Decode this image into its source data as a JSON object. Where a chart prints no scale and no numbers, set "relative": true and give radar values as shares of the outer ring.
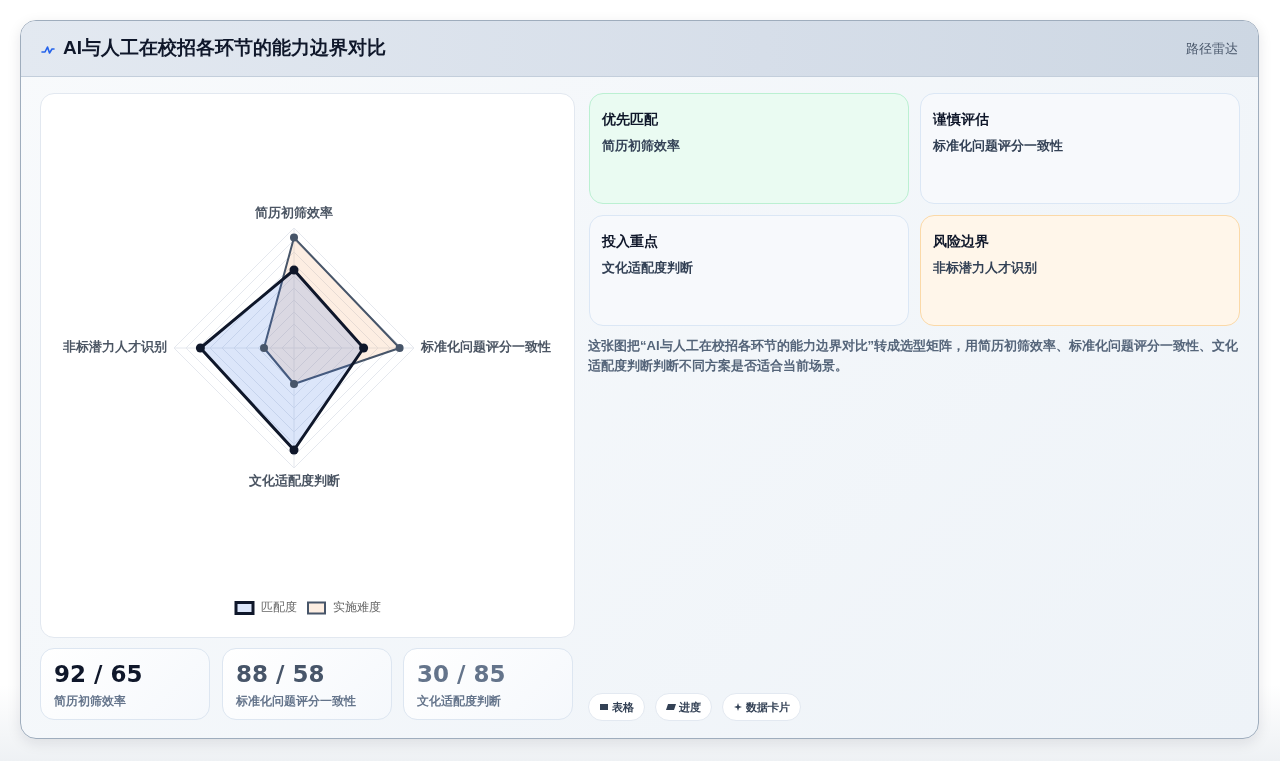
{
  "chart_data": [
    {
      "type": "other",
      "title": "AI与人工在校招各环节的能力边界对比",
      "subtitle": "路径雷达"
    },
    {
      "type": "radar",
      "categories": [
        "简历初筛效率",
        "标准化问题评分一致性",
        "文化适配度判断",
        "非标潜力人才识别"
      ],
      "series": [
        {
          "name": "匹配度",
          "color": "#0f172a",
          "values": [
            0.65,
            0.58,
            0.85,
            0.78
          ]
        },
        {
          "name": "实施难度",
          "color": "#475569",
          "values": [
            0.92,
            0.88,
            0.3,
            0.25
          ]
        }
      ],
      "relative": true,
      "grid": true,
      "legend": "bottom",
      "marker": "circle"
    },
    {
      "type": "other",
      "title": "优先匹配",
      "annotations": [
        "简历初筛效率"
      ]
    },
    {
      "type": "other",
      "title": "谨慎评估",
      "annotations": [
        "标准化问题评分一致性"
      ]
    },
    {
      "type": "other",
      "title": "投入重点",
      "annotations": [
        "文化适配度判断"
      ]
    },
    {
      "type": "other",
      "title": "风险边界",
      "annotations": [
        "非标潜力人才识别"
      ]
    },
    {
      "type": "other",
      "annotations": [
        "这张图把“AI与人工在校招各环节的能力边界对比”转成选型矩阵，用简历初筛效率、标准化问题评分一致性、文化适配度判断判断不同方案是否适合当前场景。"
      ]
    },
    {
      "type": "other",
      "title": "92 / 65",
      "annotations": [
        "简历初筛效率"
      ]
    },
    {
      "type": "other",
      "title": "88 / 58",
      "annotations": [
        "标准化问题评分一致性"
      ]
    },
    {
      "type": "other",
      "title": "30 / 85",
      "annotations": [
        "文化适配度判断"
      ]
    },
    {
      "type": "other",
      "annotations": [
        "表格",
        "进度",
        "数据卡片"
      ]
    }
  ]
}
